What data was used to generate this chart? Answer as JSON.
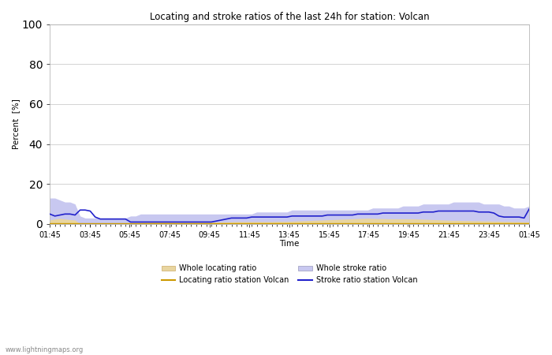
{
  "title": "Locating and stroke ratios of the last 24h for station: Volcan",
  "xlabel": "Time",
  "ylabel": "Percent  [%]",
  "ylim": [
    0,
    100
  ],
  "yticks": [
    0,
    20,
    40,
    60,
    80,
    100
  ],
  "x_tick_labels": [
    "01:45",
    "03:45",
    "05:45",
    "07:45",
    "09:45",
    "11:45",
    "13:45",
    "15:45",
    "17:45",
    "19:45",
    "21:45",
    "23:45",
    "01:45"
  ],
  "background_color": "#ffffff",
  "watermark": "www.lightningmaps.org",
  "whole_locating_color": "#e8d5a0",
  "whole_stroke_color": "#c8c8f0",
  "locating_station_color": "#cc9900",
  "stroke_station_color": "#2222cc",
  "whole_locating": [
    2.0,
    2.5,
    2.8,
    2.5,
    2.2,
    2.0,
    0.0,
    0.0,
    0.0,
    0.0,
    0.0,
    0.0,
    0.0,
    0.0,
    0.0,
    0.0,
    0.3,
    0.5,
    0.7,
    0.8,
    0.9,
    1.0,
    1.1,
    1.0,
    0.9,
    0.8,
    0.7,
    0.7,
    0.8,
    0.8,
    0.8,
    0.8,
    0.8,
    0.9,
    1.0,
    1.0,
    1.1,
    1.2,
    1.2,
    1.2,
    1.2,
    1.2,
    1.2,
    1.2,
    1.2,
    1.3,
    1.3,
    1.3,
    1.4,
    1.5,
    1.6,
    1.7,
    1.8,
    1.9,
    2.0,
    2.1,
    2.2,
    2.3,
    2.4,
    2.5,
    2.6,
    2.7,
    2.8,
    2.9,
    2.8,
    2.7,
    2.7,
    2.6,
    2.6,
    2.6,
    2.6,
    2.6,
    2.6,
    2.5,
    2.4,
    2.3,
    2.2,
    2.1,
    2.0,
    1.9,
    1.8,
    1.8,
    1.7,
    1.7,
    1.6,
    1.6,
    1.5,
    1.5,
    1.4,
    1.4,
    1.3,
    1.3,
    1.2,
    1.2,
    1.1,
    1.1
  ],
  "whole_stroke": [
    13,
    13,
    12,
    11,
    11,
    10,
    4,
    3,
    3,
    3,
    3,
    3,
    3,
    3,
    3,
    3,
    4,
    4,
    5,
    5,
    5,
    5,
    5,
    5,
    5,
    5,
    5,
    5,
    5,
    5,
    5,
    5,
    5,
    5,
    5,
    5,
    5,
    5,
    5,
    5,
    5,
    6,
    6,
    6,
    6,
    6,
    6,
    6,
    7,
    7,
    7,
    7,
    7,
    7,
    7,
    7,
    7,
    7,
    7,
    7,
    7,
    7,
    7,
    7,
    8,
    8,
    8,
    8,
    8,
    8,
    9,
    9,
    9,
    9,
    10,
    10,
    10,
    10,
    10,
    10,
    11,
    11,
    11,
    11,
    11,
    11,
    10,
    10,
    10,
    10,
    9,
    9,
    8,
    8,
    8,
    9
  ],
  "locating_station": [
    0.5,
    0.5,
    0.5,
    0.5,
    0.5,
    0.5,
    0.5,
    0.5,
    0.5,
    0.5,
    0.5,
    0.5,
    0.5,
    0.5,
    0.5,
    0.5,
    0.5,
    0.5,
    0.5,
    0.5,
    0.5,
    0.5,
    0.5,
    0.5,
    0.5,
    0.5,
    0.5,
    0.5,
    0.5,
    0.5,
    0.5,
    0.5,
    0.5,
    0.5,
    0.5,
    0.5,
    0.5,
    0.5,
    0.5,
    0.5,
    0.5,
    0.5,
    0.5,
    0.5,
    0.5,
    0.5,
    0.5,
    0.5,
    0.5,
    0.5,
    0.5,
    0.5,
    0.5,
    0.5,
    0.5,
    0.5,
    0.5,
    0.5,
    0.5,
    0.5,
    0.5,
    0.5,
    0.5,
    0.5,
    0.5,
    0.5,
    0.5,
    0.5,
    0.5,
    0.5,
    0.5,
    0.5,
    0.5,
    0.5,
    0.5,
    0.5,
    0.5,
    0.5,
    0.5,
    0.5,
    0.5,
    0.5,
    0.5,
    0.5,
    0.5,
    0.5,
    0.5,
    0.5,
    0.5,
    0.5,
    0.5,
    0.5,
    0.5,
    0.5,
    0.5,
    0.5
  ],
  "stroke_station": [
    5.0,
    4.0,
    4.5,
    5.0,
    5.0,
    4.5,
    7.0,
    7.0,
    6.5,
    3.5,
    2.5,
    2.5,
    2.5,
    2.5,
    2.5,
    2.5,
    1.0,
    1.0,
    1.0,
    1.0,
    1.0,
    1.0,
    1.0,
    1.0,
    1.0,
    1.0,
    1.0,
    1.0,
    1.0,
    1.0,
    1.0,
    1.0,
    1.0,
    1.5,
    2.0,
    2.5,
    3.0,
    3.0,
    3.0,
    3.0,
    3.5,
    3.5,
    3.5,
    3.5,
    3.5,
    3.5,
    3.5,
    3.5,
    4.0,
    4.0,
    4.0,
    4.0,
    4.0,
    4.0,
    4.0,
    4.5,
    4.5,
    4.5,
    4.5,
    4.5,
    4.5,
    5.0,
    5.0,
    5.0,
    5.0,
    5.0,
    5.5,
    5.5,
    5.5,
    5.5,
    5.5,
    5.5,
    5.5,
    5.5,
    6.0,
    6.0,
    6.0,
    6.5,
    6.5,
    6.5,
    6.5,
    6.5,
    6.5,
    6.5,
    6.5,
    6.0,
    6.0,
    6.0,
    5.5,
    4.0,
    3.5,
    3.5,
    3.5,
    3.5,
    3.0,
    7.5
  ]
}
